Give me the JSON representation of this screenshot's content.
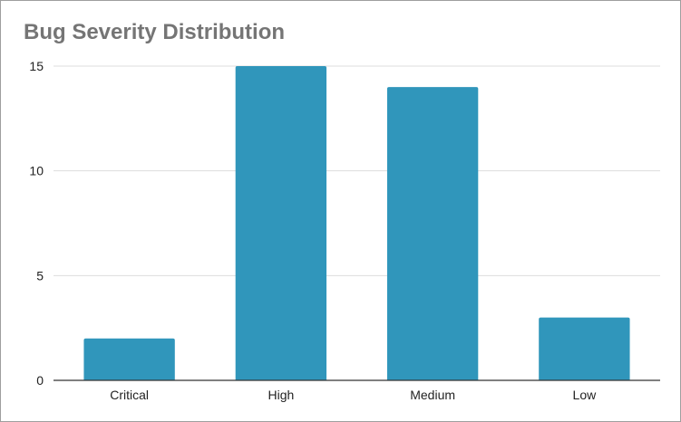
{
  "chart_data": {
    "type": "bar",
    "title": "Bug Severity Distribution",
    "categories": [
      "Critical",
      "High",
      "Medium",
      "Low"
    ],
    "values": [
      2,
      15,
      14,
      3
    ],
    "xlabel": "",
    "ylabel": "",
    "ylim": [
      0,
      15
    ],
    "yticks": [
      0,
      5,
      10,
      15
    ],
    "grid": true,
    "legend": "none",
    "bar_color": "#3096bb",
    "gridline_color": "#dddddd",
    "axis_color": "#333333"
  }
}
